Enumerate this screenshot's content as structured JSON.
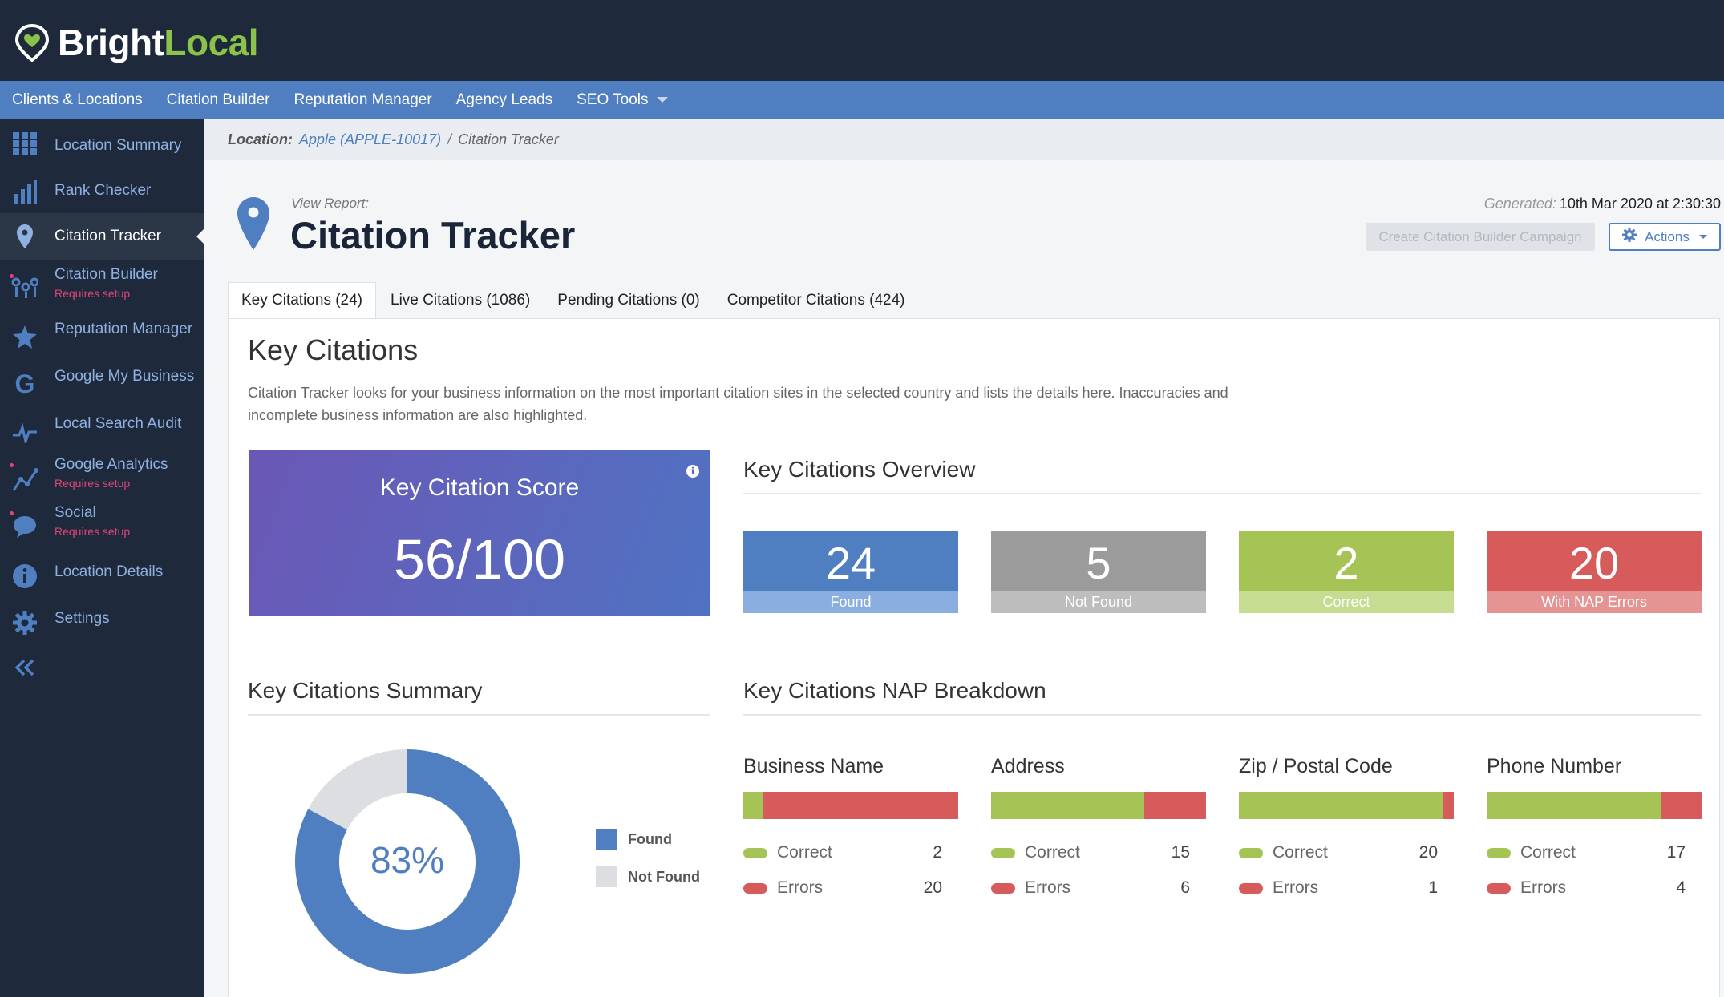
{
  "brand": {
    "name_primary": "Bright",
    "name_accent": "Local",
    "accent_color": "#8bc34a",
    "pin_icon": "map-pin-heart-icon"
  },
  "nav": {
    "items": [
      "Clients & Locations",
      "Citation Builder",
      "Reputation Manager",
      "Agency Leads",
      "SEO Tools"
    ]
  },
  "sidebar": {
    "items": [
      {
        "label": "Location Summary",
        "icon": "grid-icon"
      },
      {
        "label": "Rank Checker",
        "icon": "bar-chart-icon"
      },
      {
        "label": "Citation Tracker",
        "icon": "map-pin-icon",
        "active": true
      },
      {
        "label": "Citation Builder",
        "sub": "Requires setup",
        "icon": "pins-icon"
      },
      {
        "label": "Reputation Manager",
        "icon": "star-icon"
      },
      {
        "label": "Google My Business",
        "icon": "google-icon"
      },
      {
        "label": "Local Search Audit",
        "icon": "pulse-icon"
      },
      {
        "label": "Google Analytics",
        "sub": "Requires setup",
        "icon": "line-chart-icon"
      },
      {
        "label": "Social",
        "sub": "Requires setup",
        "icon": "speech-bubble-icon"
      },
      {
        "label": "Location Details",
        "icon": "info-icon"
      },
      {
        "label": "Settings",
        "icon": "gear-icon"
      }
    ],
    "collapse_icon": "double-chevron-left-icon"
  },
  "breadcrumb": {
    "label": "Location:",
    "link": "Apple (APPLE-10017)",
    "separator": "/",
    "current": "Citation Tracker"
  },
  "header": {
    "view_report": "View Report:",
    "title": "Citation Tracker",
    "generated_label": "Generated:",
    "generated_value": "10th Mar 2020 at 2:30:30",
    "create_button": "Create Citation Builder Campaign",
    "actions_button": "Actions"
  },
  "tabs": [
    "Key Citations (24)",
    "Live Citations (1086)",
    "Pending Citations (0)",
    "Competitor Citations (424)"
  ],
  "key_citations": {
    "title": "Key Citations",
    "description": "Citation Tracker looks for your business information on the most important citation sites in the selected country and lists the details here. Inaccuracies and incomplete business information are also highlighted.",
    "score_title": "Key Citation Score",
    "score_value": "56/100",
    "overview_title": "Key Citations Overview",
    "stats": [
      {
        "value": "24",
        "label": "Found",
        "color": "#4f7fc0",
        "label_color": "#8aaee0"
      },
      {
        "value": "5",
        "label": "Not Found",
        "color": "#9b9b9b",
        "label_color": "#bdbdbd"
      },
      {
        "value": "2",
        "label": "Correct",
        "color": "#a5c455",
        "label_color": "#c6dc91"
      },
      {
        "value": "20",
        "label": "With NAP Errors",
        "color": "#d75b5b",
        "label_color": "#e59494"
      }
    ],
    "summary_title": "Key Citations Summary",
    "nap_title": "Key Citations NAP Breakdown",
    "legend_found": "Found",
    "legend_not_found": "Not Found",
    "found_color": "#4f7fc0",
    "not_found_color": "#dcdee1"
  },
  "chart_data": {
    "type": "pie",
    "categories": [
      "Found",
      "Not Found"
    ],
    "values": [
      24,
      5
    ],
    "center_label": "83%"
  },
  "nap": [
    {
      "title": "Business Name",
      "correct_label": "Correct",
      "errors_label": "Errors",
      "correct": 2,
      "errors": 20
    },
    {
      "title": "Address",
      "correct_label": "Correct",
      "errors_label": "Errors",
      "correct": 15,
      "errors": 6
    },
    {
      "title": "Zip / Postal Code",
      "correct_label": "Correct",
      "errors_label": "Errors",
      "correct": 20,
      "errors": 1
    },
    {
      "title": "Phone Number",
      "correct_label": "Correct",
      "errors_label": "Errors",
      "correct": 17,
      "errors": 4
    }
  ]
}
